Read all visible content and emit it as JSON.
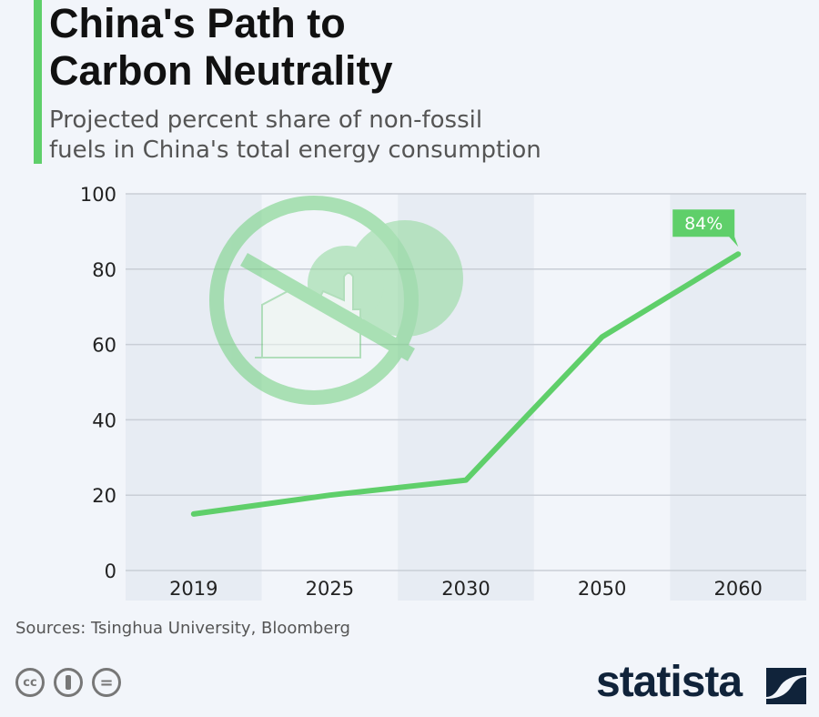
{
  "header": {
    "title_line1": "China's Path to",
    "title_line2": "Carbon Neutrality",
    "subtitle_line1": "Projected percent share of non-fossil",
    "subtitle_line2": "fuels in China's total energy consumption"
  },
  "chart_data": {
    "type": "line",
    "categories": [
      "2019",
      "2025",
      "2030",
      "2050",
      "2060"
    ],
    "values": [
      15,
      20,
      24,
      62,
      84
    ],
    "ylim": [
      0,
      100
    ],
    "yticks": [
      "0",
      "20",
      "40",
      "60",
      "80",
      "100"
    ],
    "annotation": "84%",
    "grid": true,
    "color": "#5fcf6a"
  },
  "footer": {
    "source": "Sources: Tsinghua University, Bloomberg",
    "cc_label": "cc",
    "equals_label": "=",
    "brand": "statista"
  }
}
